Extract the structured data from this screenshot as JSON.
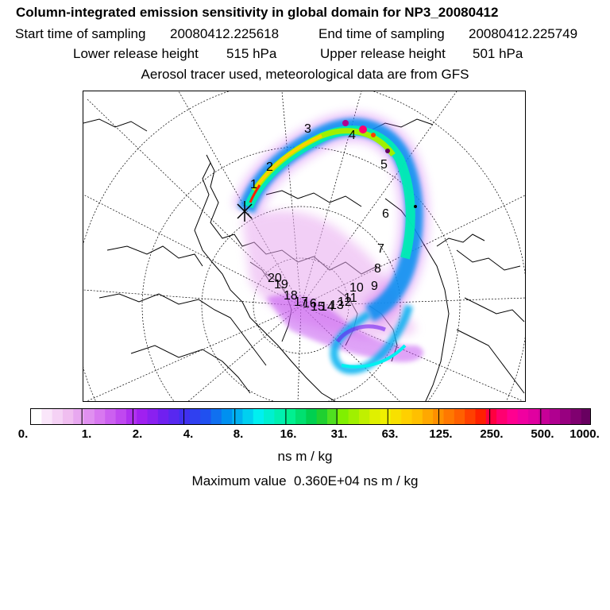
{
  "header": {
    "title": "Column-integrated emission sensitivity in global domain for NP3_20080412",
    "start_label": "Start time of sampling",
    "start_value": "20080412.225618",
    "end_label": "End time of sampling",
    "end_value": "20080412.225749",
    "lower_label": "Lower release height",
    "lower_value": "515 hPa",
    "upper_label": "Upper release height",
    "upper_value": "501 hPa",
    "aerosol_line": "Aerosol tracer used, meteorological data are from GFS"
  },
  "map": {
    "trajectory_labels": [
      "1",
      "2",
      "3",
      "4",
      "5",
      "6",
      "7",
      "8",
      "9",
      "10",
      "11",
      "12",
      "13",
      "14",
      "15",
      "16",
      "17",
      "18",
      "19",
      "20"
    ]
  },
  "colorbar": {
    "ticks": [
      "0.",
      "1.",
      "2.",
      "4.",
      "8.",
      "16.",
      "31.",
      "63.",
      "125.",
      "250.",
      "500.",
      "1000."
    ],
    "colors": [
      "#ffffff",
      "#fae6fa",
      "#f5d2f5",
      "#f0bef0",
      "#e8a8f0",
      "#e090f0",
      "#d878f0",
      "#cc60f0",
      "#c048f0",
      "#b030f0",
      "#a020f0",
      "#8a20f0",
      "#7020f0",
      "#5828f0",
      "#4030f0",
      "#3040f0",
      "#2050f0",
      "#1070f0",
      "#0090f0",
      "#00b0f0",
      "#00d0f0",
      "#00f0f0",
      "#00f0d0",
      "#00f0b0",
      "#00f090",
      "#00e070",
      "#00d050",
      "#20d030",
      "#50e020",
      "#80f000",
      "#a0f000",
      "#c0f000",
      "#e0f000",
      "#f0f000",
      "#f8e000",
      "#ffd000",
      "#ffc000",
      "#ffa800",
      "#ff9000",
      "#ff7800",
      "#ff6000",
      "#ff4000",
      "#ff2000",
      "#ff0040",
      "#ff0070",
      "#ff0090",
      "#f000a0",
      "#e000a0",
      "#c80098",
      "#b00090",
      "#980080",
      "#800070",
      "#680060"
    ],
    "unit": "ns m / kg",
    "max_label": "Maximum value",
    "max_value": "0.360E+04",
    "max_unit": "ns m / kg"
  }
}
